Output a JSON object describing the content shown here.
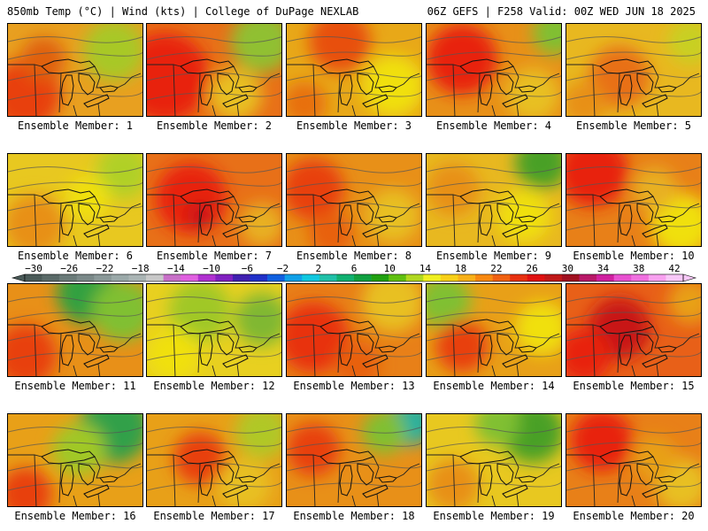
{
  "header": {
    "left": "850mb Temp (°C) | Wind (kts) | College of DuPage NEXLAB",
    "right": "06Z GEFS | F258 Valid: 00Z WED JUN 18 2025"
  },
  "members": [
    {
      "label": "Ensemble Member: 1",
      "base": "#e8a020",
      "blobs": [
        {
          "c": "#e84010",
          "x": 20,
          "y": 80,
          "r": 40
        },
        {
          "c": "#a8c828",
          "x": 120,
          "y": 30,
          "r": 35
        },
        {
          "c": "#e06010",
          "x": 40,
          "y": 40,
          "r": 25
        }
      ]
    },
    {
      "label": "Ensemble Member: 2",
      "base": "#e87018",
      "blobs": [
        {
          "c": "#e82010",
          "x": 20,
          "y": 60,
          "r": 50
        },
        {
          "c": "#90c030",
          "x": 130,
          "y": 20,
          "r": 35
        },
        {
          "c": "#e8c020",
          "x": 100,
          "y": 80,
          "r": 30
        }
      ]
    },
    {
      "label": "Ensemble Member: 3",
      "base": "#e8a818",
      "blobs": [
        {
          "c": "#e85010",
          "x": 60,
          "y": 20,
          "r": 35
        },
        {
          "c": "#f0e010",
          "x": 120,
          "y": 70,
          "r": 35
        },
        {
          "c": "#e87010",
          "x": 20,
          "y": 90,
          "r": 25
        }
      ]
    },
    {
      "label": "Ensemble Member: 4",
      "base": "#e89018",
      "blobs": [
        {
          "c": "#e82010",
          "x": 40,
          "y": 40,
          "r": 40
        },
        {
          "c": "#80c030",
          "x": 145,
          "y": 10,
          "r": 25
        },
        {
          "c": "#e8c020",
          "x": 120,
          "y": 80,
          "r": 30
        }
      ]
    },
    {
      "label": "Ensemble Member: 5",
      "base": "#e8b820",
      "blobs": [
        {
          "c": "#e87018",
          "x": 60,
          "y": 60,
          "r": 35
        },
        {
          "c": "#c8d020",
          "x": 140,
          "y": 20,
          "r": 25
        },
        {
          "c": "#e89018",
          "x": 20,
          "y": 90,
          "r": 25
        }
      ]
    },
    {
      "label": "Ensemble Member: 6",
      "base": "#e8c820",
      "blobs": [
        {
          "c": "#e89018",
          "x": 30,
          "y": 80,
          "r": 35
        },
        {
          "c": "#b0d028",
          "x": 130,
          "y": 20,
          "r": 30
        },
        {
          "c": "#f0e010",
          "x": 90,
          "y": 50,
          "r": 25
        }
      ]
    },
    {
      "label": "Ensemble Member: 7",
      "base": "#e87018",
      "blobs": [
        {
          "c": "#e82010",
          "x": 50,
          "y": 50,
          "r": 40
        },
        {
          "c": "#c81818",
          "x": 60,
          "y": 70,
          "r": 15
        },
        {
          "c": "#e8b020",
          "x": 130,
          "y": 80,
          "r": 25
        }
      ]
    },
    {
      "label": "Ensemble Member: 8",
      "base": "#e89018",
      "blobs": [
        {
          "c": "#e84010",
          "x": 30,
          "y": 40,
          "r": 35
        },
        {
          "c": "#e8c020",
          "x": 120,
          "y": 70,
          "r": 30
        },
        {
          "c": "#e86010",
          "x": 50,
          "y": 90,
          "r": 25
        }
      ]
    },
    {
      "label": "Ensemble Member: 9",
      "base": "#e8b820",
      "blobs": [
        {
          "c": "#48a028",
          "x": 130,
          "y": 10,
          "r": 30
        },
        {
          "c": "#e89018",
          "x": 30,
          "y": 40,
          "r": 30
        },
        {
          "c": "#f0e010",
          "x": 110,
          "y": 70,
          "r": 30
        }
      ]
    },
    {
      "label": "Ensemble Member: 10",
      "base": "#e88018",
      "blobs": [
        {
          "c": "#e82010",
          "x": 30,
          "y": 20,
          "r": 40
        },
        {
          "c": "#f0e010",
          "x": 130,
          "y": 80,
          "r": 35
        },
        {
          "c": "#e8b020",
          "x": 100,
          "y": 40,
          "r": 25
        }
      ]
    },
    {
      "label": "Ensemble Member: 11",
      "base": "#e89018",
      "blobs": [
        {
          "c": "#30a040",
          "x": 90,
          "y": 10,
          "r": 35
        },
        {
          "c": "#80c030",
          "x": 130,
          "y": 30,
          "r": 35
        },
        {
          "c": "#e84010",
          "x": 20,
          "y": 80,
          "r": 35
        }
      ]
    },
    {
      "label": "Ensemble Member: 12",
      "base": "#e8d020",
      "blobs": [
        {
          "c": "#a0c828",
          "x": 60,
          "y": 30,
          "r": 35
        },
        {
          "c": "#80b830",
          "x": 130,
          "y": 40,
          "r": 30
        },
        {
          "c": "#f0e010",
          "x": 30,
          "y": 80,
          "r": 30
        }
      ]
    },
    {
      "label": "Ensemble Member: 13",
      "base": "#e88018",
      "blobs": [
        {
          "c": "#e83010",
          "x": 30,
          "y": 60,
          "r": 40
        },
        {
          "c": "#e8c020",
          "x": 120,
          "y": 20,
          "r": 35
        },
        {
          "c": "#e86010",
          "x": 80,
          "y": 90,
          "r": 25
        }
      ]
    },
    {
      "label": "Ensemble Member: 14",
      "base": "#e8a018",
      "blobs": [
        {
          "c": "#80c030",
          "x": 20,
          "y": 20,
          "r": 30
        },
        {
          "c": "#e84010",
          "x": 40,
          "y": 70,
          "r": 30
        },
        {
          "c": "#f0e010",
          "x": 130,
          "y": 50,
          "r": 30
        }
      ]
    },
    {
      "label": "Ensemble Member: 15",
      "base": "#e86018",
      "blobs": [
        {
          "c": "#c81818",
          "x": 60,
          "y": 50,
          "r": 35
        },
        {
          "c": "#e82010",
          "x": 20,
          "y": 80,
          "r": 30
        },
        {
          "c": "#e8a018",
          "x": 140,
          "y": 20,
          "r": 25
        }
      ]
    },
    {
      "label": "Ensemble Member: 16",
      "base": "#e8a018",
      "blobs": [
        {
          "c": "#30a048",
          "x": 120,
          "y": 15,
          "r": 40
        },
        {
          "c": "#a0c828",
          "x": 80,
          "y": 40,
          "r": 30
        },
        {
          "c": "#e84010",
          "x": 20,
          "y": 90,
          "r": 30
        }
      ]
    },
    {
      "label": "Ensemble Member: 17",
      "base": "#e8a018",
      "blobs": [
        {
          "c": "#e84010",
          "x": 60,
          "y": 50,
          "r": 30
        },
        {
          "c": "#b0c828",
          "x": 130,
          "y": 20,
          "r": 30
        },
        {
          "c": "#e8c020",
          "x": 110,
          "y": 80,
          "r": 30
        }
      ]
    },
    {
      "label": "Ensemble Member: 18",
      "base": "#e89018",
      "blobs": [
        {
          "c": "#20b0a0",
          "x": 140,
          "y": 10,
          "r": 25
        },
        {
          "c": "#80c030",
          "x": 110,
          "y": 20,
          "r": 25
        },
        {
          "c": "#e84010",
          "x": 30,
          "y": 40,
          "r": 30
        }
      ]
    },
    {
      "label": "Ensemble Member: 19",
      "base": "#e8c820",
      "blobs": [
        {
          "c": "#48a028",
          "x": 120,
          "y": 20,
          "r": 35
        },
        {
          "c": "#80c030",
          "x": 80,
          "y": 10,
          "r": 25
        },
        {
          "c": "#e89018",
          "x": 30,
          "y": 80,
          "r": 30
        }
      ]
    },
    {
      "label": "Ensemble Member: 20",
      "base": "#e88018",
      "blobs": [
        {
          "c": "#e82010",
          "x": 40,
          "y": 30,
          "r": 35
        },
        {
          "c": "#e8c020",
          "x": 130,
          "y": 80,
          "r": 30
        },
        {
          "c": "#e8a018",
          "x": 100,
          "y": 50,
          "r": 25
        }
      ]
    }
  ],
  "colorbar": {
    "tick_labels": [
      "−30",
      "−26",
      "−22",
      "−18",
      "−14",
      "−10",
      "−6",
      "−2",
      "2",
      "6",
      "10",
      "14",
      "18",
      "22",
      "26",
      "30",
      "34",
      "38",
      "42"
    ],
    "colors": [
      "#4a5a58",
      "#5a6a68",
      "#6a7a78",
      "#7a8888",
      "#8a9898",
      "#9aa8a8",
      "#aab4b4",
      "#c8c8c8",
      "#c870c8",
      "#e060e0",
      "#b030d0",
      "#8020c0",
      "#4020b0",
      "#2030c8",
      "#1060e0",
      "#10a0e8",
      "#10c8e0",
      "#20c0a8",
      "#10b070",
      "#10a040",
      "#20a010",
      "#60c010",
      "#b0d820",
      "#f0f020",
      "#f8d018",
      "#f8b018",
      "#f88810",
      "#f06010",
      "#e83010",
      "#e01010",
      "#c01818",
      "#a01020",
      "#b81868",
      "#d020a0",
      "#e850d0",
      "#f070e0",
      "#f8a0f0",
      "#f8c8f8"
    ]
  }
}
